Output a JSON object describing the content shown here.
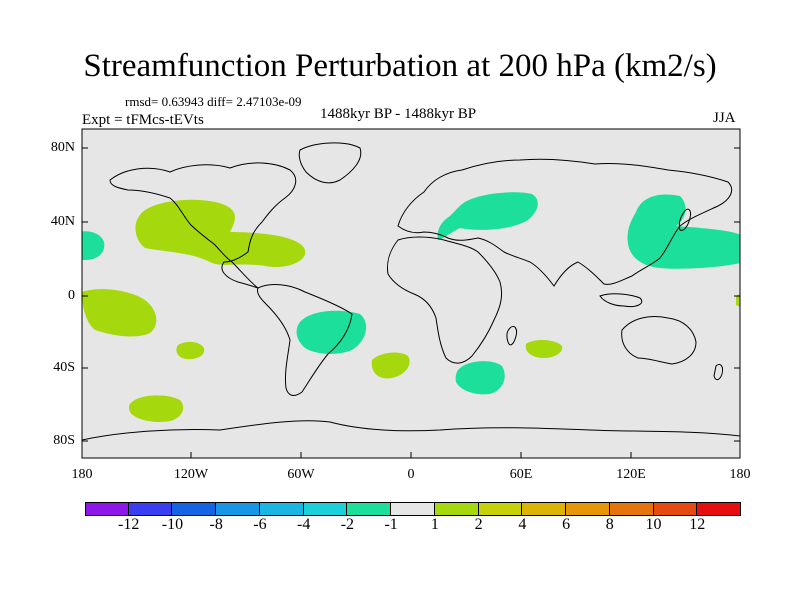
{
  "title": "Streamfunction Perturbation at 200 hPa (km2/s)",
  "stats": "rmsd= 0.63943 diff= 2.47103e-09",
  "experiment": "Expt = tFMcs-tEVts",
  "period": "1488kyr BP - 1488kyr BP",
  "season": "JJA",
  "axes": {
    "lat_ticks": [
      "80N",
      "40N",
      "0",
      "40S",
      "80S"
    ],
    "lon_ticks": [
      "180",
      "120W",
      "60W",
      "0",
      "60E",
      "120E",
      "180"
    ]
  },
  "colors": {
    "background": "#e6e6e6",
    "positive_fill": "#a5d90d",
    "negative_fill": "#1ddf9c",
    "coast": "#000000"
  },
  "colorbar": {
    "colors": [
      "#8d18e8",
      "#3a3df2",
      "#1464e6",
      "#1796e6",
      "#1ab6e3",
      "#1cd0d9",
      "#1ddf9c",
      "#e6e6e6",
      "#a5d90d",
      "#c6d10a",
      "#dcb406",
      "#e69608",
      "#e6740d",
      "#e64a10",
      "#e60e0e"
    ],
    "labels": [
      "-12",
      "-10",
      "-8",
      "-6",
      "-4",
      "-2",
      "-1",
      "1",
      "2",
      "4",
      "6",
      "8",
      "10",
      "12"
    ]
  }
}
